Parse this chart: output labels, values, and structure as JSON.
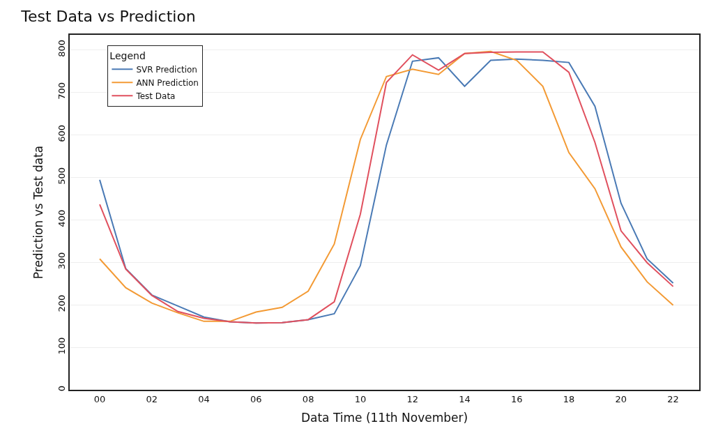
{
  "chart_data": {
    "type": "line",
    "title": "Test Data vs Prediction",
    "xlabel": "Data Time (11th November)",
    "ylabel": "Prediction vs Test data",
    "legend_title": "Legend",
    "x": [
      0,
      1,
      2,
      3,
      4,
      5,
      6,
      7,
      8,
      9,
      10,
      11,
      12,
      13,
      14,
      15,
      16,
      17,
      18,
      19,
      20,
      21,
      22
    ],
    "series": [
      {
        "name": "SVR Prediction",
        "color": "#4a7ab5",
        "values": [
          494,
          285,
          223,
          197,
          171,
          160,
          157,
          158,
          165,
          179,
          292,
          576,
          773,
          781,
          714,
          775,
          778,
          775,
          770,
          667,
          439,
          308,
          251
        ]
      },
      {
        "name": "ANN Prediction",
        "color": "#f39a34",
        "values": [
          308,
          240,
          204,
          181,
          161,
          161,
          183,
          194,
          232,
          343,
          589,
          737,
          754,
          742,
          791,
          796,
          775,
          714,
          558,
          473,
          336,
          254,
          199
        ]
      },
      {
        "name": "Test Data",
        "color": "#e0505e",
        "values": [
          436,
          284,
          222,
          184,
          168,
          160,
          157,
          158,
          165,
          207,
          413,
          723,
          788,
          752,
          791,
          794,
          795,
          795,
          747,
          582,
          374,
          299,
          243
        ]
      }
    ],
    "xlim": [
      -1.15,
      23
    ],
    "xticks": [
      {
        "value": 0,
        "label": "00"
      },
      {
        "value": 2,
        "label": "02"
      },
      {
        "value": 4,
        "label": "04"
      },
      {
        "value": 6,
        "label": "06"
      },
      {
        "value": 8,
        "label": "08"
      },
      10,
      12,
      14,
      16,
      18,
      20,
      22
    ],
    "ylim": [
      0,
      835
    ],
    "yticks": [
      0,
      100,
      200,
      300,
      400,
      500,
      600,
      700,
      800
    ],
    "grid": "y",
    "legend": "top left",
    "marker": "none",
    "line_style": "solid"
  }
}
